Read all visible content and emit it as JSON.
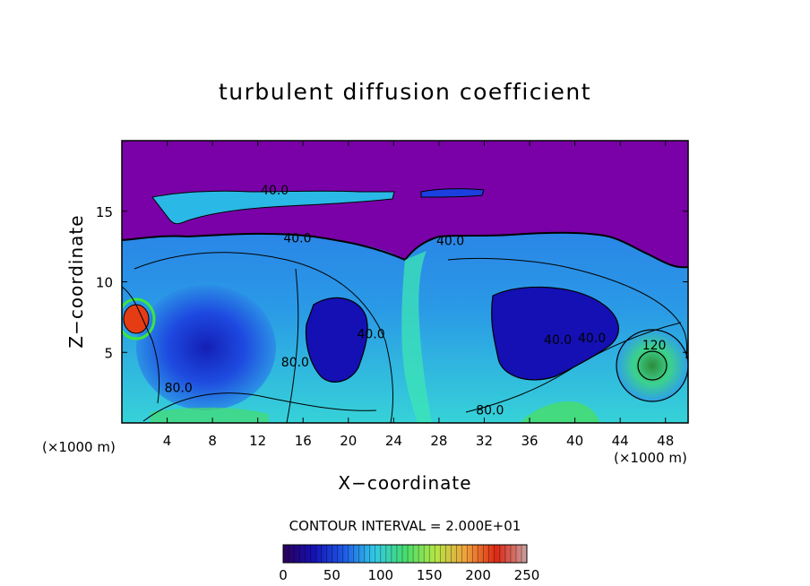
{
  "chart_data": {
    "type": "heatmap",
    "title": "turbulent diffusion coefficient",
    "xlabel": "X−coordinate",
    "ylabel": "Z−coordinate",
    "x_unit_left": "(×1000 m)",
    "x_unit_right": "(×1000 m)",
    "xlim": [
      0,
      50
    ],
    "ylim": [
      0,
      20
    ],
    "x_ticks": [
      4,
      8,
      12,
      16,
      20,
      24,
      28,
      32,
      36,
      40,
      44,
      48
    ],
    "y_ticks": [
      5,
      10,
      15
    ],
    "contour_interval_text": "CONTOUR INTERVAL = 2.000E+01",
    "contour_labels": [
      {
        "text": "40.0",
        "x": 13.5,
        "y": 16.2
      },
      {
        "text": "40.0",
        "x": 15.5,
        "y": 12.8
      },
      {
        "text": "40.0",
        "x": 29.0,
        "y": 12.6
      },
      {
        "text": "40.0",
        "x": 22.0,
        "y": 6.0
      },
      {
        "text": "40.0",
        "x": 38.5,
        "y": 5.6
      },
      {
        "text": "40.0",
        "x": 41.5,
        "y": 5.7
      },
      {
        "text": "80.0",
        "x": 5.0,
        "y": 2.2
      },
      {
        "text": "80.0",
        "x": 15.3,
        "y": 4.0
      },
      {
        "text": "80.0",
        "x": 32.5,
        "y": 0.6
      },
      {
        "text": "120",
        "x": 47.0,
        "y": 5.2
      }
    ],
    "colorbar": {
      "min": 0,
      "max": 250,
      "ticks": [
        0,
        50,
        100,
        150,
        200,
        250
      ],
      "colors": [
        "#2a005a",
        "#1410b4",
        "#1e5ae6",
        "#32c8e6",
        "#46dc6e",
        "#b4e646",
        "#f0a03c",
        "#dc2814",
        "#c8a0a0"
      ]
    },
    "colors": {
      "background_field": "#7a00a8",
      "low": "#1a1ad8",
      "mid": "#2ea0e8",
      "high": "#3ce6c8",
      "peak": "#e63c14"
    }
  }
}
